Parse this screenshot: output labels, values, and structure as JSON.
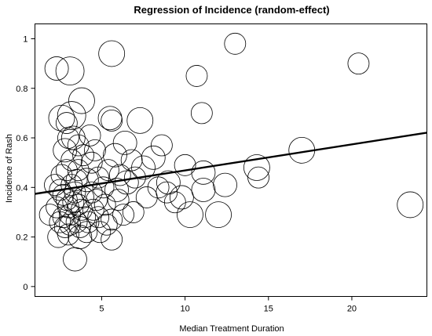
{
  "chart_data": {
    "type": "scatter",
    "title": "Regression of Incidence (random-effect)",
    "xlabel": "Median Treatment Duration",
    "ylabel": "Incidence of Rash",
    "xlim": [
      1,
      24.5
    ],
    "ylim": [
      -0.04,
      1.06
    ],
    "xticks": [
      5,
      10,
      15,
      20
    ],
    "yticks": [
      0,
      0.2,
      0.4,
      0.6,
      0.8,
      1
    ],
    "grid": false,
    "legend": "none",
    "regression_line": {
      "x": [
        1,
        24.5
      ],
      "y": [
        0.374,
        0.621
      ]
    },
    "points": [
      {
        "x": 2.3,
        "y": 0.88,
        "w": 1.0
      },
      {
        "x": 3.1,
        "y": 0.87,
        "w": 1.2
      },
      {
        "x": 3.8,
        "y": 0.75,
        "w": 1.1
      },
      {
        "x": 2.6,
        "y": 0.68,
        "w": 1.1
      },
      {
        "x": 3.2,
        "y": 0.69,
        "w": 1.2
      },
      {
        "x": 5.6,
        "y": 0.94,
        "w": 1.1
      },
      {
        "x": 5.5,
        "y": 0.68,
        "w": 1.0
      },
      {
        "x": 5.6,
        "y": 0.67,
        "w": 0.9
      },
      {
        "x": 7.3,
        "y": 0.67,
        "w": 1.1
      },
      {
        "x": 10.7,
        "y": 0.85,
        "w": 0.9
      },
      {
        "x": 13.0,
        "y": 0.98,
        "w": 0.9
      },
      {
        "x": 11.0,
        "y": 0.7,
        "w": 0.9
      },
      {
        "x": 20.4,
        "y": 0.9,
        "w": 0.9
      },
      {
        "x": 17.0,
        "y": 0.55,
        "w": 1.1
      },
      {
        "x": 14.3,
        "y": 0.48,
        "w": 1.1
      },
      {
        "x": 14.4,
        "y": 0.44,
        "w": 0.9
      },
      {
        "x": 23.5,
        "y": 0.33,
        "w": 1.1
      },
      {
        "x": 12.4,
        "y": 0.41,
        "w": 1.0
      },
      {
        "x": 11.1,
        "y": 0.39,
        "w": 1.0
      },
      {
        "x": 12.0,
        "y": 0.29,
        "w": 1.1
      },
      {
        "x": 10.3,
        "y": 0.29,
        "w": 1.1
      },
      {
        "x": 11.1,
        "y": 0.46,
        "w": 1.0
      },
      {
        "x": 10.0,
        "y": 0.49,
        "w": 0.9
      },
      {
        "x": 9.0,
        "y": 0.42,
        "w": 1.0
      },
      {
        "x": 9.8,
        "y": 0.36,
        "w": 1.0
      },
      {
        "x": 8.6,
        "y": 0.57,
        "w": 0.9
      },
      {
        "x": 8.1,
        "y": 0.52,
        "w": 1.0
      },
      {
        "x": 8.4,
        "y": 0.4,
        "w": 0.9
      },
      {
        "x": 7.7,
        "y": 0.36,
        "w": 0.9
      },
      {
        "x": 7.5,
        "y": 0.48,
        "w": 1.0
      },
      {
        "x": 7.0,
        "y": 0.44,
        "w": 0.9
      },
      {
        "x": 6.9,
        "y": 0.3,
        "w": 0.9
      },
      {
        "x": 6.3,
        "y": 0.29,
        "w": 0.9
      },
      {
        "x": 6.5,
        "y": 0.42,
        "w": 1.0
      },
      {
        "x": 6.4,
        "y": 0.58,
        "w": 1.0
      },
      {
        "x": 5.8,
        "y": 0.53,
        "w": 1.0
      },
      {
        "x": 5.9,
        "y": 0.39,
        "w": 1.0
      },
      {
        "x": 5.4,
        "y": 0.47,
        "w": 0.9
      },
      {
        "x": 5.2,
        "y": 0.33,
        "w": 0.9
      },
      {
        "x": 5.6,
        "y": 0.27,
        "w": 0.9
      },
      {
        "x": 5.6,
        "y": 0.19,
        "w": 0.9
      },
      {
        "x": 4.9,
        "y": 0.22,
        "w": 0.9
      },
      {
        "x": 4.7,
        "y": 0.35,
        "w": 0.9
      },
      {
        "x": 4.6,
        "y": 0.55,
        "w": 0.9
      },
      {
        "x": 4.3,
        "y": 0.61,
        "w": 0.9
      },
      {
        "x": 4.1,
        "y": 0.43,
        "w": 1.0
      },
      {
        "x": 4.0,
        "y": 0.28,
        "w": 0.9
      },
      {
        "x": 3.7,
        "y": 0.2,
        "w": 1.0
      },
      {
        "x": 3.6,
        "y": 0.33,
        "w": 0.9
      },
      {
        "x": 3.6,
        "y": 0.57,
        "w": 0.9
      },
      {
        "x": 3.3,
        "y": 0.6,
        "w": 1.0
      },
      {
        "x": 3.2,
        "y": 0.51,
        "w": 0.9
      },
      {
        "x": 3.2,
        "y": 0.41,
        "w": 0.9
      },
      {
        "x": 3.1,
        "y": 0.29,
        "w": 0.9
      },
      {
        "x": 3.1,
        "y": 0.25,
        "w": 0.9
      },
      {
        "x": 3.0,
        "y": 0.21,
        "w": 0.9
      },
      {
        "x": 3.4,
        "y": 0.11,
        "w": 1.0
      },
      {
        "x": 2.8,
        "y": 0.55,
        "w": 1.0
      },
      {
        "x": 2.6,
        "y": 0.45,
        "w": 0.9
      },
      {
        "x": 2.5,
        "y": 0.39,
        "w": 0.9
      },
      {
        "x": 2.3,
        "y": 0.32,
        "w": 0.9
      },
      {
        "x": 2.4,
        "y": 0.2,
        "w": 0.9
      },
      {
        "x": 1.9,
        "y": 0.29,
        "w": 0.9
      },
      {
        "x": 2.2,
        "y": 0.41,
        "w": 0.9
      },
      {
        "x": 2.9,
        "y": 0.35,
        "w": 0.9
      },
      {
        "x": 2.7,
        "y": 0.28,
        "w": 0.9
      },
      {
        "x": 2.8,
        "y": 0.24,
        "w": 0.9
      },
      {
        "x": 3.0,
        "y": 0.32,
        "w": 0.9
      },
      {
        "x": 3.4,
        "y": 0.38,
        "w": 0.9
      },
      {
        "x": 3.5,
        "y": 0.26,
        "w": 0.9
      },
      {
        "x": 3.8,
        "y": 0.31,
        "w": 0.9
      },
      {
        "x": 4.2,
        "y": 0.26,
        "w": 0.9
      },
      {
        "x": 4.4,
        "y": 0.38,
        "w": 0.9
      },
      {
        "x": 4.8,
        "y": 0.44,
        "w": 0.9
      },
      {
        "x": 5.1,
        "y": 0.4,
        "w": 0.9
      },
      {
        "x": 5.3,
        "y": 0.25,
        "w": 0.9
      },
      {
        "x": 6.0,
        "y": 0.35,
        "w": 0.9
      },
      {
        "x": 3.6,
        "y": 0.47,
        "w": 0.9
      },
      {
        "x": 3.0,
        "y": 0.6,
        "w": 0.9
      },
      {
        "x": 3.9,
        "y": 0.53,
        "w": 0.9
      },
      {
        "x": 2.9,
        "y": 0.66,
        "w": 0.9
      },
      {
        "x": 4.4,
        "y": 0.5,
        "w": 0.9
      },
      {
        "x": 2.7,
        "y": 0.37,
        "w": 0.9
      },
      {
        "x": 3.3,
        "y": 0.34,
        "w": 0.9
      },
      {
        "x": 3.9,
        "y": 0.36,
        "w": 0.9
      },
      {
        "x": 4.5,
        "y": 0.31,
        "w": 0.9
      },
      {
        "x": 2.5,
        "y": 0.26,
        "w": 0.9
      },
      {
        "x": 3.7,
        "y": 0.24,
        "w": 0.9
      },
      {
        "x": 4.1,
        "y": 0.22,
        "w": 0.9
      },
      {
        "x": 6.1,
        "y": 0.45,
        "w": 0.9
      },
      {
        "x": 6.8,
        "y": 0.51,
        "w": 0.9
      },
      {
        "x": 8.9,
        "y": 0.38,
        "w": 0.9
      },
      {
        "x": 9.4,
        "y": 0.34,
        "w": 0.9
      },
      {
        "x": 3.5,
        "y": 0.43,
        "w": 0.9
      },
      {
        "x": 2.9,
        "y": 0.47,
        "w": 0.9
      },
      {
        "x": 4.8,
        "y": 0.28,
        "w": 0.9
      }
    ]
  }
}
